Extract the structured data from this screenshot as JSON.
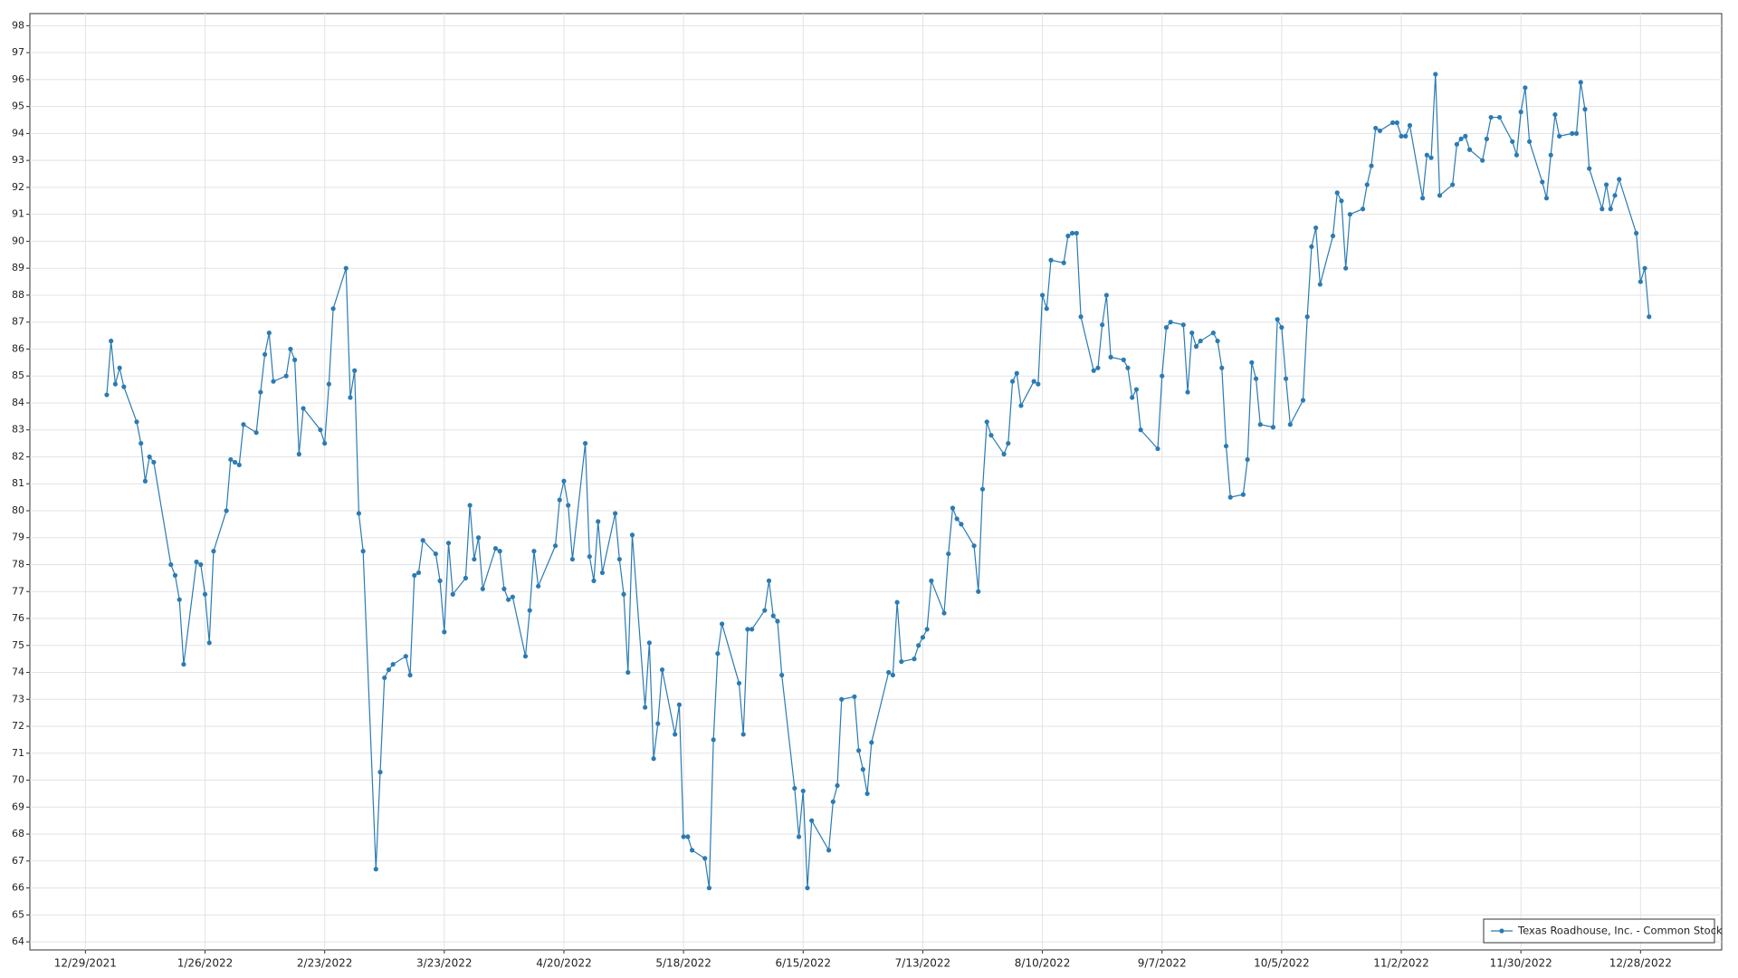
{
  "chart_data": {
    "type": "line",
    "x": [
      "1/3/2022",
      "1/4/2022",
      "1/5/2022",
      "1/6/2022",
      "1/7/2022",
      "1/10/2022",
      "1/11/2022",
      "1/12/2022",
      "1/13/2022",
      "1/14/2022",
      "1/18/2022",
      "1/19/2022",
      "1/20/2022",
      "1/21/2022",
      "1/24/2022",
      "1/25/2022",
      "1/26/2022",
      "1/27/2022",
      "1/28/2022",
      "1/31/2022",
      "2/1/2022",
      "2/2/2022",
      "2/3/2022",
      "2/4/2022",
      "2/7/2022",
      "2/8/2022",
      "2/9/2022",
      "2/10/2022",
      "2/11/2022",
      "2/14/2022",
      "2/15/2022",
      "2/16/2022",
      "2/17/2022",
      "2/18/2022",
      "2/22/2022",
      "2/23/2022",
      "2/24/2022",
      "2/25/2022",
      "2/28/2022",
      "3/1/2022",
      "3/2/2022",
      "3/3/2022",
      "3/4/2022",
      "3/7/2022",
      "3/8/2022",
      "3/9/2022",
      "3/10/2022",
      "3/11/2022",
      "3/14/2022",
      "3/15/2022",
      "3/16/2022",
      "3/17/2022",
      "3/18/2022",
      "3/21/2022",
      "3/22/2022",
      "3/23/2022",
      "3/24/2022",
      "3/25/2022",
      "3/28/2022",
      "3/29/2022",
      "3/30/2022",
      "3/31/2022",
      "4/1/2022",
      "4/4/2022",
      "4/5/2022",
      "4/6/2022",
      "4/7/2022",
      "4/8/2022",
      "4/11/2022",
      "4/12/2022",
      "4/13/2022",
      "4/14/2022",
      "4/18/2022",
      "4/19/2022",
      "4/20/2022",
      "4/21/2022",
      "4/22/2022",
      "4/25/2022",
      "4/26/2022",
      "4/27/2022",
      "4/28/2022",
      "4/29/2022",
      "5/2/2022",
      "5/3/2022",
      "5/4/2022",
      "5/5/2022",
      "5/6/2022",
      "5/9/2022",
      "5/10/2022",
      "5/11/2022",
      "5/12/2022",
      "5/13/2022",
      "5/16/2022",
      "5/17/2022",
      "5/18/2022",
      "5/19/2022",
      "5/20/2022",
      "5/23/2022",
      "5/24/2022",
      "5/25/2022",
      "5/26/2022",
      "5/27/2022",
      "5/31/2022",
      "6/1/2022",
      "6/2/2022",
      "6/3/2022",
      "6/6/2022",
      "6/7/2022",
      "6/8/2022",
      "6/9/2022",
      "6/10/2022",
      "6/13/2022",
      "6/14/2022",
      "6/15/2022",
      "6/16/2022",
      "6/17/2022",
      "6/21/2022",
      "6/22/2022",
      "6/23/2022",
      "6/24/2022",
      "6/27/2022",
      "6/28/2022",
      "6/29/2022",
      "6/30/2022",
      "7/1/2022",
      "7/5/2022",
      "7/6/2022",
      "7/7/2022",
      "7/8/2022",
      "7/11/2022",
      "7/12/2022",
      "7/13/2022",
      "7/14/2022",
      "7/15/2022",
      "7/18/2022",
      "7/19/2022",
      "7/20/2022",
      "7/21/2022",
      "7/22/2022",
      "7/25/2022",
      "7/26/2022",
      "7/27/2022",
      "7/28/2022",
      "7/29/2022",
      "8/1/2022",
      "8/2/2022",
      "8/3/2022",
      "8/4/2022",
      "8/5/2022",
      "8/8/2022",
      "8/9/2022",
      "8/10/2022",
      "8/11/2022",
      "8/12/2022",
      "8/15/2022",
      "8/16/2022",
      "8/17/2022",
      "8/18/2022",
      "8/19/2022",
      "8/22/2022",
      "8/23/2022",
      "8/24/2022",
      "8/25/2022",
      "8/26/2022",
      "8/29/2022",
      "8/30/2022",
      "8/31/2022",
      "9/1/2022",
      "9/2/2022",
      "9/6/2022",
      "9/7/2022",
      "9/8/2022",
      "9/9/2022",
      "9/12/2022",
      "9/13/2022",
      "9/14/2022",
      "9/15/2022",
      "9/16/2022",
      "9/19/2022",
      "9/20/2022",
      "9/21/2022",
      "9/22/2022",
      "9/23/2022",
      "9/26/2022",
      "9/27/2022",
      "9/28/2022",
      "9/29/2022",
      "9/30/2022",
      "10/3/2022",
      "10/4/2022",
      "10/5/2022",
      "10/6/2022",
      "10/7/2022",
      "10/10/2022",
      "10/11/2022",
      "10/12/2022",
      "10/13/2022",
      "10/14/2022",
      "10/17/2022",
      "10/18/2022",
      "10/19/2022",
      "10/20/2022",
      "10/21/2022",
      "10/24/2022",
      "10/25/2022",
      "10/26/2022",
      "10/27/2022",
      "10/28/2022",
      "10/31/2022",
      "11/1/2022",
      "11/2/2022",
      "11/3/2022",
      "11/4/2022",
      "11/7/2022",
      "11/8/2022",
      "11/9/2022",
      "11/10/2022",
      "11/11/2022",
      "11/14/2022",
      "11/15/2022",
      "11/16/2022",
      "11/17/2022",
      "11/18/2022",
      "11/21/2022",
      "11/22/2022",
      "11/23/2022",
      "11/25/2022",
      "11/28/2022",
      "11/29/2022",
      "11/30/2022",
      "12/1/2022",
      "12/2/2022",
      "12/5/2022",
      "12/6/2022",
      "12/7/2022",
      "12/8/2022",
      "12/9/2022",
      "12/12/2022",
      "12/13/2022",
      "12/14/2022",
      "12/15/2022",
      "12/16/2022",
      "12/19/2022",
      "12/20/2022",
      "12/21/2022",
      "12/22/2022",
      "12/23/2022",
      "12/27/2022",
      "12/28/2022",
      "12/29/2022",
      "12/30/2022"
    ],
    "series": [
      {
        "name": "Texas Roadhouse, Inc. - Common Stock",
        "color": "#2b7bb3",
        "values": [
          84.3,
          86.3,
          84.7,
          85.3,
          84.6,
          83.3,
          82.5,
          81.1,
          82.0,
          81.8,
          78.0,
          77.6,
          76.7,
          74.3,
          78.1,
          78.0,
          76.9,
          75.1,
          78.5,
          80.0,
          81.9,
          81.8,
          81.7,
          83.2,
          82.9,
          84.4,
          85.8,
          86.6,
          84.8,
          85.0,
          86.0,
          85.6,
          82.1,
          83.8,
          83.0,
          82.5,
          84.7,
          87.5,
          89.0,
          84.2,
          85.2,
          79.9,
          78.5,
          66.7,
          70.3,
          73.8,
          74.1,
          74.3,
          74.6,
          73.9,
          77.6,
          77.7,
          78.9,
          78.4,
          77.4,
          75.5,
          78.8,
          76.9,
          77.5,
          80.2,
          78.2,
          79.0,
          77.1,
          78.6,
          78.5,
          77.1,
          76.7,
          76.8,
          74.6,
          76.3,
          78.5,
          77.2,
          78.7,
          80.4,
          81.1,
          80.2,
          78.2,
          82.5,
          78.3,
          77.4,
          79.6,
          77.7,
          79.9,
          78.2,
          76.9,
          74.0,
          79.1,
          72.7,
          75.1,
          70.8,
          72.1,
          74.1,
          71.7,
          72.8,
          67.9,
          67.9,
          67.4,
          67.1,
          66.0,
          71.5,
          74.7,
          75.8,
          73.6,
          71.7,
          75.6,
          75.6,
          76.3,
          77.4,
          76.1,
          75.9,
          73.9,
          69.7,
          67.9,
          69.6,
          66.0,
          68.5,
          67.4,
          69.2,
          69.8,
          73.0,
          73.1,
          71.1,
          70.4,
          69.5,
          71.4,
          74.0,
          73.9,
          76.6,
          74.4,
          74.5,
          75.0,
          75.3,
          75.6,
          77.4,
          76.2,
          78.4,
          80.1,
          79.7,
          79.5,
          78.7,
          77.0,
          80.8,
          83.3,
          82.8,
          82.1,
          82.5,
          84.8,
          85.1,
          83.9,
          84.8,
          84.7,
          88.0,
          87.5,
          89.3,
          89.2,
          90.2,
          90.3,
          90.3,
          87.2,
          85.2,
          85.3,
          86.9,
          88.0,
          85.7,
          85.6,
          85.3,
          84.2,
          84.5,
          83.0,
          82.3,
          85.0,
          86.8,
          87.0,
          86.9,
          84.4,
          86.6,
          86.1,
          86.3,
          86.6,
          86.3,
          85.3,
          82.4,
          80.5,
          80.6,
          81.9,
          85.5,
          84.9,
          83.2,
          83.1,
          87.1,
          86.8,
          84.9,
          83.2,
          84.1,
          87.2,
          89.8,
          90.5,
          88.4,
          90.2,
          91.8,
          91.5,
          89.0,
          91.0,
          91.2,
          92.1,
          92.8,
          94.2,
          94.1,
          94.4,
          94.4,
          93.9,
          93.9,
          94.3,
          91.6,
          93.2,
          93.1,
          96.2,
          91.7,
          92.1,
          93.6,
          93.8,
          93.9,
          93.4,
          93.0,
          93.8,
          94.6,
          94.6,
          93.7,
          93.2,
          94.8,
          95.7,
          93.7,
          92.2,
          91.6,
          93.2,
          94.7,
          93.9,
          94.0,
          94.0,
          95.9,
          94.9,
          92.7,
          91.2,
          92.1,
          91.2,
          91.7,
          92.3,
          90.3,
          88.5,
          89.0,
          87.2
        ]
      }
    ],
    "xlim": [
      "12/16/2021",
      "1/16/2023"
    ],
    "xticks": [
      "12/29/2021",
      "1/26/2022",
      "2/23/2022",
      "3/23/2022",
      "4/20/2022",
      "5/18/2022",
      "6/15/2022",
      "7/13/2022",
      "8/10/2022",
      "9/7/2022",
      "10/5/2022",
      "11/2/2022",
      "11/30/2022",
      "12/28/2022"
    ],
    "ylim": [
      63.7,
      98.45
    ],
    "yticks": [
      64,
      65,
      66,
      67,
      68,
      69,
      70,
      71,
      72,
      73,
      74,
      75,
      76,
      77,
      78,
      79,
      80,
      81,
      82,
      83,
      84,
      85,
      86,
      87,
      88,
      89,
      90,
      91,
      92,
      93,
      94,
      95,
      96,
      97,
      98
    ],
    "grid": true,
    "legend": "lower right"
  }
}
